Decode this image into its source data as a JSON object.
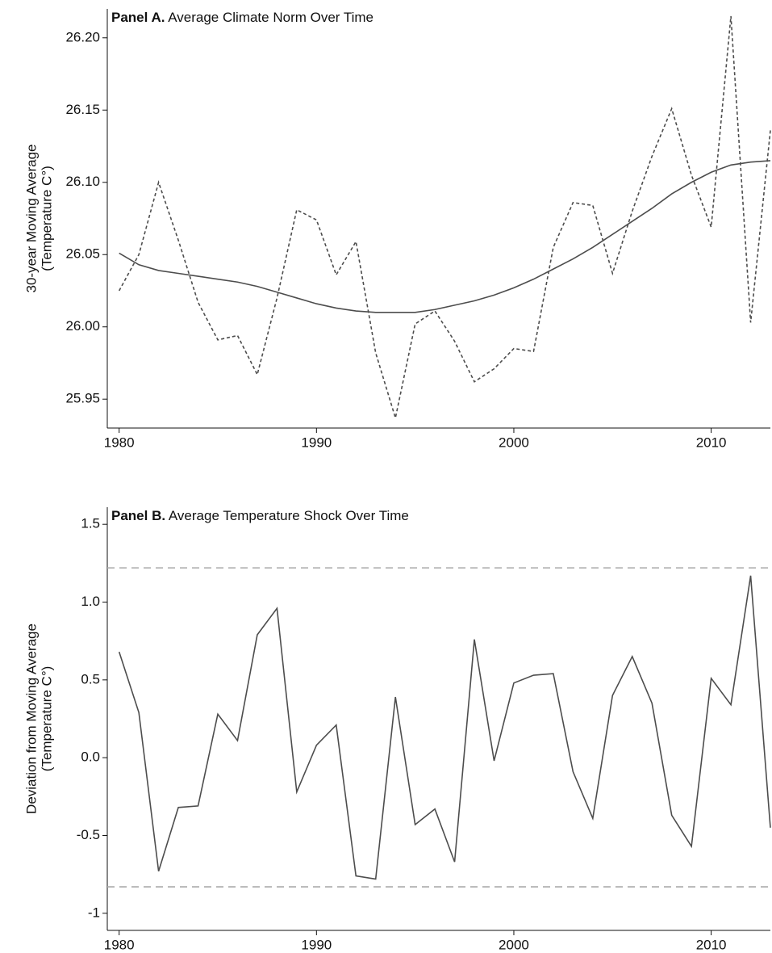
{
  "chart_data": [
    {
      "type": "line",
      "title_label": "Panel A.",
      "title": "Average Climate Norm Over Time",
      "ylabel": [
        "30-year Moving Average",
        "(Temperature C°)"
      ],
      "x": [
        1980,
        1981,
        1982,
        1983,
        1984,
        1985,
        1986,
        1987,
        1988,
        1989,
        1990,
        1991,
        1992,
        1993,
        1994,
        1995,
        1996,
        1997,
        1998,
        1999,
        2000,
        2001,
        2002,
        2003,
        2004,
        2005,
        2006,
        2007,
        2008,
        2009,
        2010,
        2011,
        2012,
        2013
      ],
      "series": [
        {
          "color": "#4d4d4d",
          "dashed": true,
          "values": [
            26.025,
            26.05,
            26.1,
            26.06,
            26.017,
            25.991,
            25.994,
            25.967,
            26.02,
            26.081,
            26.074,
            26.036,
            26.059,
            25.982,
            25.937,
            26.002,
            26.011,
            25.99,
            25.962,
            25.971,
            25.985,
            25.983,
            26.055,
            26.086,
            26.084,
            26.037,
            26.08,
            26.118,
            26.151,
            26.105,
            26.069,
            26.215,
            26.003,
            26.136
          ]
        },
        {
          "color": "#4d4d4d",
          "dashed": false,
          "values": [
            26.051,
            26.043,
            26.039,
            26.037,
            26.035,
            26.033,
            26.031,
            26.028,
            26.024,
            26.02,
            26.016,
            26.013,
            26.011,
            26.01,
            26.01,
            26.01,
            26.012,
            26.015,
            26.018,
            26.022,
            26.027,
            26.033,
            26.04,
            26.047,
            26.055,
            26.064,
            26.073,
            26.082,
            26.092,
            26.1,
            26.107,
            26.112,
            26.114,
            26.115
          ]
        }
      ],
      "xlim": [
        1979.4,
        2013
      ],
      "xticks": [
        1980,
        1990,
        2000,
        2010
      ],
      "ylim": [
        25.93,
        26.22
      ],
      "yticks": [
        25.95,
        {
          "value": 26,
          "label": "26.00"
        },
        26.05,
        {
          "value": 26.1,
          "label": "26.10"
        },
        26.15,
        {
          "value": 26.2,
          "label": "26.20"
        }
      ]
    },
    {
      "type": "line",
      "title_label": "Panel B.",
      "title": "Average Temperature Shock Over Time",
      "ylabel": [
        "Deviation from Moving Average",
        "(Temperature C°)"
      ],
      "x": [
        1980,
        1981,
        1982,
        1983,
        1984,
        1985,
        1986,
        1987,
        1988,
        1989,
        1990,
        1991,
        1992,
        1993,
        1994,
        1995,
        1996,
        1997,
        1998,
        1999,
        2000,
        2001,
        2002,
        2003,
        2004,
        2005,
        2006,
        2007,
        2008,
        2009,
        2010,
        2011,
        2012,
        2013
      ],
      "series": [
        {
          "color": "#4d4d4d",
          "dashed": false,
          "values": [
            0.68,
            0.29,
            -0.73,
            -0.32,
            -0.31,
            0.28,
            0.11,
            0.79,
            0.96,
            -0.22,
            0.08,
            0.21,
            -0.76,
            -0.78,
            0.39,
            -0.43,
            -0.33,
            -0.67,
            0.76,
            -0.02,
            0.48,
            0.53,
            0.54,
            -0.09,
            -0.39,
            0.4,
            0.65,
            0.35,
            -0.37,
            -0.57,
            0.51,
            0.34,
            1.17,
            -0.45
          ]
        }
      ],
      "hlines": [
        1.22,
        -0.83
      ],
      "hline_color": "#aaaaaa",
      "xlim": [
        1979.4,
        2013
      ],
      "xticks": [
        1980,
        1990,
        2000,
        2010
      ],
      "ylim": [
        -1.11,
        1.61
      ],
      "yticks": [
        -1,
        -0.5,
        {
          "value": 0,
          "label": "0.0"
        },
        0.5,
        {
          "value": 1,
          "label": "1.0"
        },
        1.5
      ]
    }
  ]
}
